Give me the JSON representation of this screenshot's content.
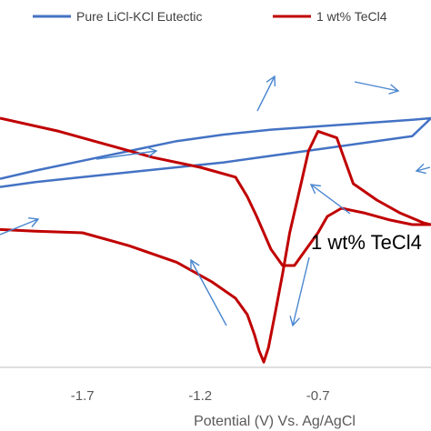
{
  "chart_data": {
    "type": "line",
    "title": "",
    "xlabel": "Potential (V) Vs. Ag/AgCl",
    "ylabel": "",
    "xlim": [
      -2.05,
      -0.22
    ],
    "ylim": [
      -1.0,
      1.0
    ],
    "x_ticks": [
      -1.7,
      -1.2,
      -0.7
    ],
    "x_tick_labels": [
      "-1.7",
      "-1.2",
      "-0.7"
    ],
    "grid": false,
    "legend_position": "top",
    "annotation": "1 wt% TeCl4",
    "colors": {
      "pure": "#4472c4",
      "tecl4": "#c00000",
      "arrow": "#4a86cf",
      "axis": "#bfbfbf"
    },
    "series": [
      {
        "name": "Pure LiCl-KCl Eutectic",
        "color": "#4472c4",
        "x": [
          -2.05,
          -1.9,
          -1.7,
          -1.5,
          -1.3,
          -1.1,
          -0.9,
          -0.7,
          -0.5,
          -0.3,
          -0.22,
          -0.3,
          -0.5,
          -0.7,
          -0.9,
          -1.1,
          -1.3,
          -1.5,
          -1.7,
          -1.9,
          -2.05
        ],
        "y": [
          0.13,
          0.18,
          0.24,
          0.3,
          0.36,
          0.4,
          0.43,
          0.45,
          0.47,
          0.49,
          0.5,
          0.39,
          0.35,
          0.31,
          0.27,
          0.23,
          0.2,
          0.17,
          0.14,
          0.11,
          0.08
        ]
      },
      {
        "name": "1 wt% TeCl4",
        "color": "#c00000",
        "x": [
          -2.05,
          -1.9,
          -1.7,
          -1.5,
          -1.3,
          -1.15,
          -1.05,
          -1.0,
          -0.97,
          -0.95,
          -0.93,
          -0.91,
          -0.88,
          -0.85,
          -0.82,
          -0.78,
          -0.74,
          -0.7,
          -0.62,
          -0.55,
          -0.45,
          -0.35,
          -0.25,
          -0.22,
          -0.3,
          -0.4,
          -0.5,
          -0.6,
          -0.66,
          -0.7,
          -0.75,
          -0.8,
          -0.85,
          -0.9,
          -0.96,
          -1.0,
          -1.05,
          -1.2,
          -1.4,
          -1.6,
          -1.8,
          -2.05
        ],
        "y": [
          -0.18,
          -0.19,
          -0.2,
          -0.28,
          -0.38,
          -0.5,
          -0.6,
          -0.7,
          -0.82,
          -0.92,
          -0.99,
          -0.9,
          -0.68,
          -0.45,
          -0.2,
          0.05,
          0.3,
          0.42,
          0.38,
          0.1,
          0.0,
          -0.08,
          -0.14,
          -0.15,
          -0.15,
          -0.12,
          -0.08,
          -0.05,
          -0.1,
          -0.2,
          -0.3,
          -0.4,
          -0.4,
          -0.3,
          -0.1,
          0.02,
          0.14,
          0.2,
          0.26,
          0.34,
          0.42,
          0.5
        ]
      }
    ]
  }
}
